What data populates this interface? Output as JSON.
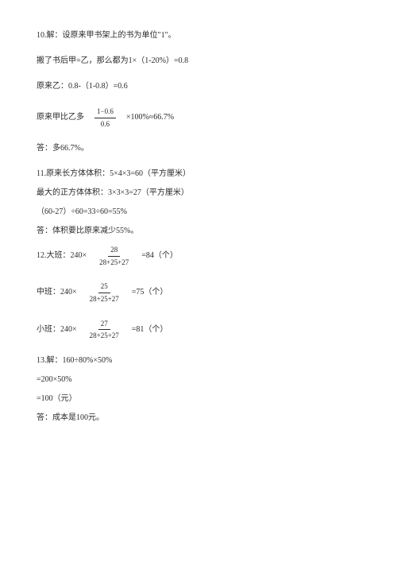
{
  "text_color": "#2a2a2a",
  "background": "#ffffff",
  "font_size_pt": 10,
  "p10_a": "10.解：设原来甲书架上的书为单位\"1\"。",
  "p10_b": "搬了书后甲=乙，那么都为1×（1-20%）=0.8",
  "p10_c": "原来乙：0.8-（1-0.8）=0.6",
  "p10_d1": "原来甲比乙多　",
  "p10_frac_num": "1−0.6",
  "p10_frac_den": "0.6",
  "p10_d2": "　×100%≈66.7%",
  "p10_e": "答：多66.7%。",
  "p11_a": "11.原来长方体体积：5×4×3=60（平方厘米）",
  "p11_b": "最大的正方体体积：3×3×3=27（平方厘米）",
  "p11_c": "（60-27）÷60=33÷60=55%",
  "p11_d": "答：体积要比原来减少55%。",
  "p12_a1": "12.大班：240×　",
  "p12_a_num": "28",
  "p12_a_den": "28+25+27",
  "p12_a2": "　=84（个）",
  "p12_b1": "中班：240×　",
  "p12_b_num": "25",
  "p12_b_den": "28+25+27",
  "p12_b2": "　=75（个）",
  "p12_c1": "小班：240×　",
  "p12_c_num": "27",
  "p12_c_den": "28+25+27",
  "p12_c2": "　=81（个）",
  "p13_a": "13.解：160÷80%×50%",
  "p13_b": "=200×50%",
  "p13_c": "=100（元）",
  "p13_d": "答：成本是100元。"
}
